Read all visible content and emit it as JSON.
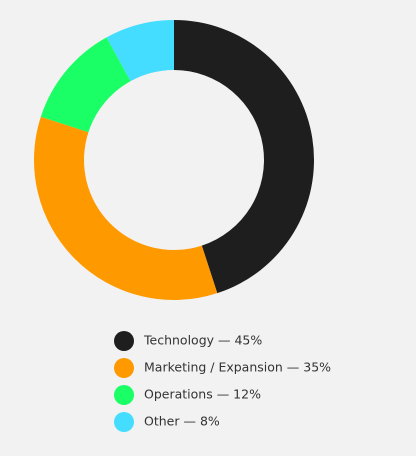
{
  "chart_data": {
    "type": "donut",
    "categories": [
      "Technology — 45%",
      "Marketing / Expansion — 35%",
      "Operations — 12%",
      "Other — 8%"
    ],
    "values": [
      45,
      35,
      12,
      8
    ],
    "colors": [
      "#1e1e1e",
      "#ff9900",
      "#1aff66",
      "#44ddff"
    ]
  }
}
